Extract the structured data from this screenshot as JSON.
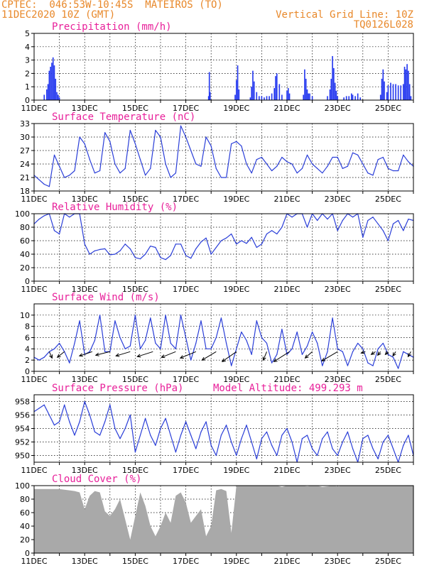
{
  "header": {
    "line1": "CPTEC:  046:53W-10:45S  MATEIROS (TO)",
    "line2": "11DEC2020 10Z (GMT)",
    "grid_note": "Vertical Grid Line: 10Z",
    "product_code": "TQ0126L028",
    "model_altitude": "Model Altitude: 499.293 m"
  },
  "colors": {
    "header": "#e8882a",
    "title": "#e8209a",
    "line": "#2a3ed8",
    "bar": "#2438ef",
    "cloud": "#a9a9a9",
    "arrow": "#000000"
  },
  "x_tick_labels": [
    "11DEC",
    "13DEC",
    "15DEC",
    "17DEC",
    "19DEC",
    "21DEC",
    "23DEC",
    "25DEC"
  ],
  "chart_data": [
    {
      "id": "precip",
      "type": "bar",
      "title": "Precipitation (mm/h)",
      "x_range_days": [
        0,
        15
      ],
      "ylim": [
        0,
        5
      ],
      "yticks": [
        0,
        1,
        2,
        3,
        4,
        5
      ],
      "points": [
        [
          0.4,
          0.4
        ],
        [
          0.5,
          0.8
        ],
        [
          0.55,
          1.2
        ],
        [
          0.6,
          2.2
        ],
        [
          0.65,
          2.5
        ],
        [
          0.7,
          2.8
        ],
        [
          0.75,
          3.2
        ],
        [
          0.8,
          2.6
        ],
        [
          0.85,
          1.6
        ],
        [
          0.9,
          0.6
        ],
        [
          0.95,
          0.4
        ],
        [
          1.0,
          0.2
        ],
        [
          6.9,
          0.3
        ],
        [
          6.93,
          2.1
        ],
        [
          6.96,
          0.6
        ],
        [
          7.95,
          0.4
        ],
        [
          8.0,
          1.5
        ],
        [
          8.05,
          2.6
        ],
        [
          8.1,
          0.8
        ],
        [
          8.55,
          0.2
        ],
        [
          8.6,
          1.0
        ],
        [
          8.65,
          2.2
        ],
        [
          8.7,
          1.4
        ],
        [
          8.8,
          0.6
        ],
        [
          8.9,
          0.3
        ],
        [
          9.0,
          0.3
        ],
        [
          9.1,
          0.2
        ],
        [
          9.2,
          0.3
        ],
        [
          9.3,
          0.3
        ],
        [
          9.4,
          0.5
        ],
        [
          9.5,
          0.9
        ],
        [
          9.55,
          1.8
        ],
        [
          9.6,
          2.0
        ],
        [
          9.7,
          1.2
        ],
        [
          9.8,
          0.4
        ],
        [
          10.0,
          0.7
        ],
        [
          10.05,
          0.9
        ],
        [
          10.1,
          0.5
        ],
        [
          10.65,
          0.4
        ],
        [
          10.7,
          2.3
        ],
        [
          10.75,
          1.6
        ],
        [
          10.8,
          0.8
        ],
        [
          10.85,
          0.5
        ],
        [
          10.9,
          0.5
        ],
        [
          11.0,
          0.3
        ],
        [
          11.6,
          0.3
        ],
        [
          11.7,
          0.8
        ],
        [
          11.75,
          1.6
        ],
        [
          11.8,
          3.3
        ],
        [
          11.85,
          2.4
        ],
        [
          11.9,
          1.3
        ],
        [
          11.95,
          0.7
        ],
        [
          12.0,
          0.3
        ],
        [
          12.25,
          0.2
        ],
        [
          12.35,
          0.3
        ],
        [
          12.45,
          0.3
        ],
        [
          12.55,
          0.5
        ],
        [
          12.6,
          0.4
        ],
        [
          12.7,
          0.3
        ],
        [
          12.8,
          0.5
        ],
        [
          12.9,
          0.2
        ],
        [
          13.7,
          0.4
        ],
        [
          13.75,
          1.6
        ],
        [
          13.8,
          2.3
        ],
        [
          13.85,
          1.4
        ],
        [
          13.95,
          0.6
        ],
        [
          14.0,
          1.1
        ],
        [
          14.1,
          1.3
        ],
        [
          14.2,
          1.2
        ],
        [
          14.3,
          1.2
        ],
        [
          14.4,
          1.1
        ],
        [
          14.5,
          1.1
        ],
        [
          14.6,
          1.2
        ],
        [
          14.65,
          2.5
        ],
        [
          14.7,
          2.3
        ],
        [
          14.75,
          2.7
        ],
        [
          14.8,
          2.2
        ],
        [
          14.85,
          1.2
        ],
        [
          14.9,
          0.3
        ]
      ]
    },
    {
      "id": "temp",
      "type": "line",
      "title": "Surface Temperature (nC)",
      "ylim": [
        18,
        33
      ],
      "yticks": [
        18,
        21,
        24,
        27,
        30,
        33
      ],
      "x": [
        0,
        0.2,
        0.4,
        0.6,
        0.8,
        1.0,
        1.2,
        1.4,
        1.6,
        1.8,
        2.0,
        2.2,
        2.4,
        2.6,
        2.8,
        3.0,
        3.2,
        3.4,
        3.6,
        3.8,
        4.0,
        4.2,
        4.4,
        4.6,
        4.8,
        5.0,
        5.2,
        5.4,
        5.6,
        5.8,
        6.0,
        6.2,
        6.4,
        6.6,
        6.8,
        7.0,
        7.2,
        7.4,
        7.6,
        7.8,
        8.0,
        8.2,
        8.4,
        8.6,
        8.8,
        9.0,
        9.2,
        9.4,
        9.6,
        9.8,
        10.0,
        10.2,
        10.4,
        10.6,
        10.8,
        11.0,
        11.2,
        11.4,
        11.6,
        11.8,
        12.0,
        12.2,
        12.4,
        12.6,
        12.8,
        13.0,
        13.2,
        13.4,
        13.6,
        13.8,
        14.0,
        14.2,
        14.4,
        14.6,
        14.8,
        15.0
      ],
      "y": [
        21.5,
        20.5,
        19.5,
        19.0,
        26.0,
        23.5,
        21.0,
        21.5,
        22.5,
        30.0,
        28.5,
        25.0,
        22.0,
        22.5,
        31.0,
        29.0,
        24.0,
        22.0,
        23.0,
        31.5,
        28.5,
        25.0,
        21.5,
        23.0,
        31.5,
        30.0,
        24.0,
        21.0,
        22.0,
        32.5,
        30.0,
        27.0,
        24.0,
        23.5,
        30.0,
        28.0,
        23.0,
        21.0,
        21.0,
        28.5,
        29.0,
        28.0,
        24.0,
        22.0,
        25.0,
        25.5,
        24.0,
        22.5,
        23.5,
        25.5,
        24.5,
        24.0,
        22.0,
        23.0,
        26.0,
        24.0,
        23.0,
        22.0,
        23.5,
        25.5,
        25.5,
        23.0,
        23.5,
        26.5,
        26.0,
        24.0,
        22.0,
        21.5,
        25.0,
        25.5,
        23.0,
        22.5,
        22.5,
        26.0,
        24.5,
        23.5
      ]
    },
    {
      "id": "rh",
      "type": "line",
      "title": "Relative Humidity (%)",
      "ylim": [
        0,
        100
      ],
      "yticks": [
        0,
        20,
        40,
        60,
        80,
        100
      ],
      "x": [
        0,
        0.2,
        0.4,
        0.6,
        0.8,
        1.0,
        1.2,
        1.4,
        1.6,
        1.8,
        2.0,
        2.2,
        2.4,
        2.6,
        2.8,
        3.0,
        3.2,
        3.4,
        3.6,
        3.8,
        4.0,
        4.2,
        4.4,
        4.6,
        4.8,
        5.0,
        5.2,
        5.4,
        5.6,
        5.8,
        6.0,
        6.2,
        6.4,
        6.6,
        6.8,
        7.0,
        7.2,
        7.4,
        7.6,
        7.8,
        8.0,
        8.2,
        8.4,
        8.6,
        8.8,
        9.0,
        9.2,
        9.4,
        9.6,
        9.8,
        10.0,
        10.2,
        10.4,
        10.6,
        10.8,
        11.0,
        11.2,
        11.4,
        11.6,
        11.8,
        12.0,
        12.2,
        12.4,
        12.6,
        12.8,
        13.0,
        13.2,
        13.4,
        13.6,
        13.8,
        14.0,
        14.2,
        14.4,
        14.6,
        14.8,
        15.0
      ],
      "y": [
        85,
        92,
        97,
        100,
        75,
        70,
        100,
        95,
        100,
        100,
        55,
        40,
        45,
        47,
        48,
        39,
        40,
        45,
        55,
        48,
        35,
        33,
        40,
        52,
        50,
        35,
        32,
        38,
        55,
        55,
        38,
        34,
        48,
        58,
        64,
        40,
        50,
        60,
        64,
        70,
        55,
        60,
        56,
        65,
        50,
        55,
        70,
        75,
        70,
        80,
        100,
        95,
        100,
        100,
        80,
        100,
        90,
        100,
        92,
        100,
        75,
        90,
        100,
        95,
        100,
        65,
        90,
        95,
        85,
        75,
        60,
        85,
        90,
        75,
        92,
        90
      ]
    },
    {
      "id": "wind",
      "type": "line",
      "title": "Surface Wind (m/s)",
      "ylim": [
        0,
        12
      ],
      "yticks": [
        0,
        2,
        4,
        6,
        8,
        10
      ],
      "x": [
        0,
        0.2,
        0.4,
        0.6,
        0.8,
        1.0,
        1.2,
        1.4,
        1.6,
        1.8,
        2.0,
        2.2,
        2.4,
        2.6,
        2.8,
        3.0,
        3.2,
        3.4,
        3.6,
        3.8,
        4.0,
        4.2,
        4.4,
        4.6,
        4.8,
        5.0,
        5.2,
        5.4,
        5.6,
        5.8,
        6.0,
        6.2,
        6.4,
        6.6,
        6.8,
        7.0,
        7.2,
        7.4,
        7.6,
        7.8,
        8.0,
        8.2,
        8.4,
        8.6,
        8.8,
        9.0,
        9.2,
        9.4,
        9.6,
        9.8,
        10.0,
        10.2,
        10.4,
        10.6,
        10.8,
        11.0,
        11.2,
        11.4,
        11.6,
        11.8,
        12.0,
        12.2,
        12.4,
        12.6,
        12.8,
        13.0,
        13.2,
        13.4,
        13.6,
        13.8,
        14.0,
        14.2,
        14.4,
        14.6,
        14.8,
        15.0
      ],
      "y": [
        2.5,
        2,
        2.5,
        3.5,
        4,
        5,
        3.5,
        1.5,
        5,
        9,
        3,
        3.5,
        5.5,
        10,
        3.5,
        3.5,
        9,
        6,
        4,
        4.5,
        10,
        4,
        5.5,
        9.5,
        5,
        4,
        10,
        5,
        4,
        10,
        6,
        2,
        5,
        9,
        4,
        4,
        6,
        9.5,
        5,
        1,
        4,
        7,
        5.5,
        3,
        9,
        6,
        5,
        1.5,
        3,
        7.5,
        3,
        4,
        7,
        3,
        4.5,
        7,
        5,
        1,
        3.5,
        9.5,
        4,
        3.5,
        1,
        3.5,
        5,
        4,
        1.5,
        1,
        4,
        5,
        3,
        2.5,
        0.5,
        3.5,
        3,
        2.5
      ]
    },
    {
      "id": "pressure",
      "type": "line",
      "title": "Surface Pressure (hPa)",
      "ylim": [
        949,
        959
      ],
      "yticks": [
        950,
        952,
        954,
        956,
        958
      ],
      "x": [
        0,
        0.2,
        0.4,
        0.6,
        0.8,
        1.0,
        1.2,
        1.4,
        1.6,
        1.8,
        2.0,
        2.2,
        2.4,
        2.6,
        2.8,
        3.0,
        3.2,
        3.4,
        3.6,
        3.8,
        4.0,
        4.2,
        4.4,
        4.6,
        4.8,
        5.0,
        5.2,
        5.4,
        5.6,
        5.8,
        6.0,
        6.2,
        6.4,
        6.6,
        6.8,
        7.0,
        7.2,
        7.4,
        7.6,
        7.8,
        8.0,
        8.2,
        8.4,
        8.6,
        8.8,
        9.0,
        9.2,
        9.4,
        9.6,
        9.8,
        10.0,
        10.2,
        10.4,
        10.6,
        10.8,
        11.0,
        11.2,
        11.4,
        11.6,
        11.8,
        12.0,
        12.2,
        12.4,
        12.6,
        12.8,
        13.0,
        13.2,
        13.4,
        13.6,
        13.8,
        14.0,
        14.2,
        14.4,
        14.6,
        14.8,
        15.0
      ],
      "y": [
        956.5,
        957,
        957.5,
        956,
        954.5,
        955,
        957.5,
        955,
        953,
        955,
        958,
        956,
        953.5,
        953,
        955,
        957.5,
        954,
        952.5,
        954,
        956,
        950.5,
        953,
        955.5,
        953,
        951.5,
        954,
        955.5,
        953,
        950.5,
        953,
        955,
        953,
        951,
        953.5,
        955,
        951.5,
        950,
        953,
        954.5,
        952,
        950,
        952.5,
        954.5,
        952,
        949.5,
        952.5,
        953.5,
        951.5,
        950,
        953,
        954,
        952,
        949,
        952.5,
        953,
        951,
        950,
        952.5,
        953.5,
        951,
        950,
        952,
        953.5,
        951,
        949,
        952.5,
        953,
        951,
        949.5,
        952,
        953,
        951,
        949,
        951.5,
        953,
        950
      ]
    },
    {
      "id": "cloud",
      "type": "area",
      "title": "Cloud Cover (%)",
      "ylim": [
        0,
        100
      ],
      "yticks": [
        0,
        20,
        40,
        60,
        80,
        100
      ],
      "x": [
        0,
        0.2,
        0.4,
        0.6,
        0.8,
        1.0,
        1.2,
        1.4,
        1.6,
        1.8,
        2.0,
        2.2,
        2.4,
        2.6,
        2.8,
        3.0,
        3.2,
        3.4,
        3.6,
        3.8,
        4.0,
        4.2,
        4.4,
        4.6,
        4.8,
        5.0,
        5.2,
        5.4,
        5.6,
        5.8,
        6.0,
        6.2,
        6.4,
        6.6,
        6.8,
        7.0,
        7.2,
        7.4,
        7.6,
        7.8,
        8.0,
        8.2,
        8.4,
        8.6,
        8.8,
        9.0,
        9.2,
        9.4,
        9.6,
        9.8,
        10.0,
        10.2,
        10.4,
        10.6,
        10.8,
        11.0,
        11.2,
        11.4,
        11.6,
        11.8,
        12.0,
        12.2,
        12.4,
        12.6,
        12.8,
        13.0,
        13.2,
        13.4,
        13.6,
        13.8,
        14.0,
        14.2,
        14.4,
        14.6,
        14.8,
        15.0
      ],
      "y": [
        95,
        95,
        95,
        95,
        95,
        95,
        94,
        93,
        92,
        90,
        65,
        85,
        92,
        90,
        62,
        55,
        65,
        80,
        50,
        20,
        55,
        90,
        70,
        40,
        25,
        40,
        60,
        45,
        85,
        90,
        75,
        45,
        55,
        65,
        25,
        40,
        93,
        95,
        92,
        30,
        100,
        100,
        100,
        100,
        100,
        100,
        100,
        100,
        100,
        98,
        100,
        100,
        100,
        100,
        99,
        100,
        100,
        98,
        99,
        100,
        99,
        100,
        100,
        100,
        100,
        100,
        100,
        100,
        100,
        100,
        100,
        100,
        100,
        100,
        100,
        100
      ]
    }
  ],
  "wind_arrows": [
    {
      "t": 0.6,
      "dx": -4,
      "dy": 9
    },
    {
      "t": 1.2,
      "dx": 10,
      "dy": 8
    },
    {
      "t": 2.3,
      "dx": 18,
      "dy": 6
    },
    {
      "t": 3.0,
      "dx": 20,
      "dy": 5
    },
    {
      "t": 3.8,
      "dx": 20,
      "dy": 6
    },
    {
      "t": 4.7,
      "dx": 22,
      "dy": 7
    },
    {
      "t": 5.6,
      "dx": 20,
      "dy": 8
    },
    {
      "t": 6.4,
      "dx": 22,
      "dy": 9
    },
    {
      "t": 7.2,
      "dx": 20,
      "dy": 12
    },
    {
      "t": 8.0,
      "dx": 20,
      "dy": 14
    },
    {
      "t": 9.2,
      "dx": 5,
      "dy": 12
    },
    {
      "t": 10.1,
      "dx": 22,
      "dy": 14
    },
    {
      "t": 11.0,
      "dx": 10,
      "dy": 9
    },
    {
      "t": 12.0,
      "dx": 22,
      "dy": 13
    },
    {
      "t": 13.1,
      "dx": 6,
      "dy": 2
    },
    {
      "t": 13.7,
      "dx": 4,
      "dy": 5
    },
    {
      "t": 14.3,
      "dx": 4,
      "dy": 6
    },
    {
      "t": 14.9,
      "dx": 4,
      "dy": 7
    },
    {
      "t": 13.5,
      "dx": 6,
      "dy": 4
    },
    {
      "t": 14.0,
      "dx": 4,
      "dy": 4
    }
  ]
}
